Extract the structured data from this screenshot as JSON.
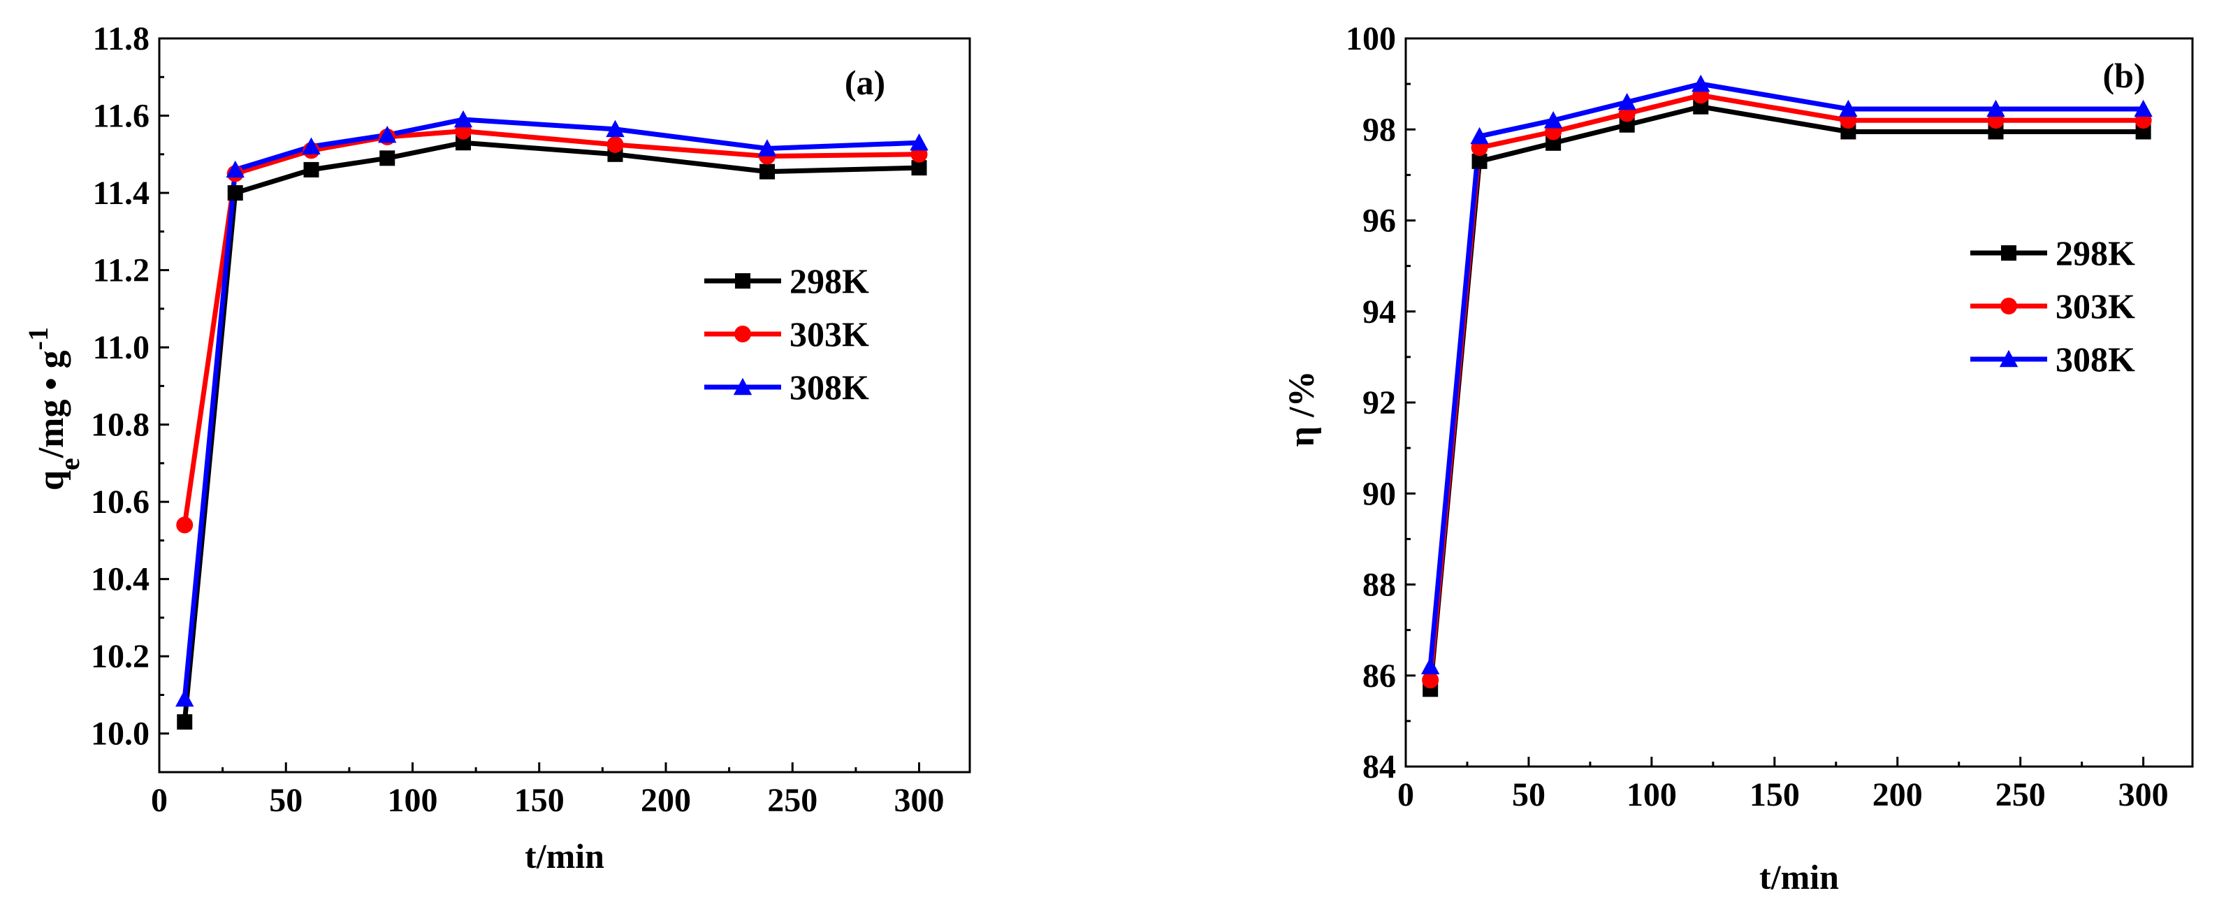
{
  "colors": {
    "s298": "#000000",
    "s303": "#ff0000",
    "s308": "#0000ff"
  },
  "chart_data": [
    {
      "type": "line",
      "panel_label": "(a)",
      "xlabel": "t/min",
      "ylabel": "q",
      "ylabel_sub": "e",
      "ylabel_rest": "/mg • g",
      "ylabel_sup": "-1",
      "xlim": [
        0,
        320
      ],
      "ylim": [
        9.9,
        11.8
      ],
      "xticks": [
        0,
        50,
        100,
        150,
        200,
        250,
        300
      ],
      "yticks": [
        10.0,
        10.2,
        10.4,
        10.6,
        10.8,
        11.0,
        11.2,
        11.4,
        11.6,
        11.8
      ],
      "ytick_labels": [
        "10.0",
        "10.2",
        "10.4",
        "10.6",
        "10.8",
        "11.0",
        "11.2",
        "11.4",
        "11.6",
        "11.8"
      ],
      "legend_position": "center-right",
      "x": [
        10,
        30,
        60,
        90,
        120,
        180,
        240,
        300
      ],
      "series": [
        {
          "name": "298K",
          "marker": "square",
          "color": "#000000",
          "values": [
            10.03,
            11.4,
            11.46,
            11.49,
            11.53,
            11.5,
            11.455,
            11.465
          ]
        },
        {
          "name": "303K",
          "marker": "circle",
          "color": "#ff0000",
          "values": [
            10.54,
            11.45,
            11.51,
            11.545,
            11.56,
            11.525,
            11.495,
            11.5
          ]
        },
        {
          "name": "308K",
          "marker": "triangle",
          "color": "#0000ff",
          "values": [
            10.09,
            11.46,
            11.52,
            11.55,
            11.59,
            11.565,
            11.515,
            11.53
          ]
        }
      ]
    },
    {
      "type": "line",
      "panel_label": "(b)",
      "xlabel": "t/min",
      "ylabel": "η /%",
      "xlim": [
        0,
        320
      ],
      "ylim": [
        84,
        100
      ],
      "xticks": [
        0,
        50,
        100,
        150,
        200,
        250,
        300
      ],
      "yticks": [
        84,
        86,
        88,
        90,
        92,
        94,
        96,
        98,
        100
      ],
      "ytick_labels": [
        "84",
        "86",
        "88",
        "90",
        "92",
        "94",
        "96",
        "98",
        "100"
      ],
      "legend_position": "center-right",
      "x": [
        10,
        30,
        60,
        90,
        120,
        180,
        240,
        300
      ],
      "series": [
        {
          "name": "298K",
          "marker": "square",
          "color": "#000000",
          "values": [
            85.7,
            97.3,
            97.7,
            98.1,
            98.5,
            97.95,
            97.95,
            97.95
          ]
        },
        {
          "name": "303K",
          "marker": "circle",
          "color": "#ff0000",
          "values": [
            85.9,
            97.6,
            97.95,
            98.35,
            98.75,
            98.2,
            98.2,
            98.2
          ]
        },
        {
          "name": "308K",
          "marker": "triangle",
          "color": "#0000ff",
          "values": [
            86.2,
            97.85,
            98.2,
            98.6,
            99.0,
            98.45,
            98.45,
            98.45
          ]
        }
      ]
    }
  ]
}
